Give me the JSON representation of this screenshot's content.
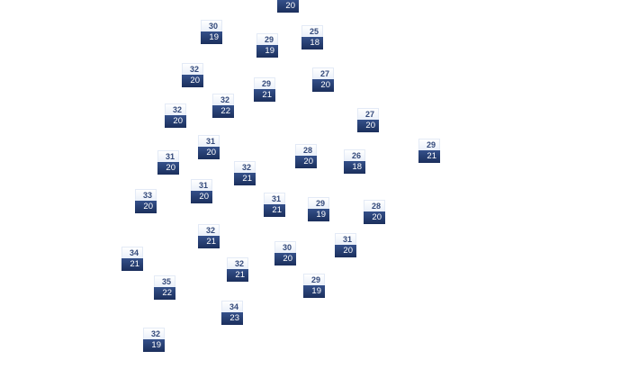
{
  "markers": [
    {
      "high": "",
      "low": "20"
    },
    {
      "high": "30",
      "low": "19"
    },
    {
      "high": "29",
      "low": "19"
    },
    {
      "high": "25",
      "low": "18"
    },
    {
      "high": "32",
      "low": "20"
    },
    {
      "high": "29",
      "low": "21"
    },
    {
      "high": "27",
      "low": "20"
    },
    {
      "high": "32",
      "low": "22"
    },
    {
      "high": "32",
      "low": "20"
    },
    {
      "high": "27",
      "low": "20"
    },
    {
      "high": "31",
      "low": "20"
    },
    {
      "high": "28",
      "low": "20"
    },
    {
      "high": "26",
      "low": "18"
    },
    {
      "high": "29",
      "low": "21"
    },
    {
      "high": "31",
      "low": "20"
    },
    {
      "high": "32",
      "low": "21"
    },
    {
      "high": "31",
      "low": "20"
    },
    {
      "high": "33",
      "low": "20"
    },
    {
      "high": "31",
      "low": "21"
    },
    {
      "high": "29",
      "low": "19"
    },
    {
      "high": "28",
      "low": "20"
    },
    {
      "high": "32",
      "low": "21"
    },
    {
      "high": "31",
      "low": "20"
    },
    {
      "high": "30",
      "low": "20"
    },
    {
      "high": "34",
      "low": "21"
    },
    {
      "high": "32",
      "low": "21"
    },
    {
      "high": "29",
      "low": "19"
    },
    {
      "high": "35",
      "low": "22"
    },
    {
      "high": "34",
      "low": "23"
    },
    {
      "high": "32",
      "low": "19"
    }
  ]
}
